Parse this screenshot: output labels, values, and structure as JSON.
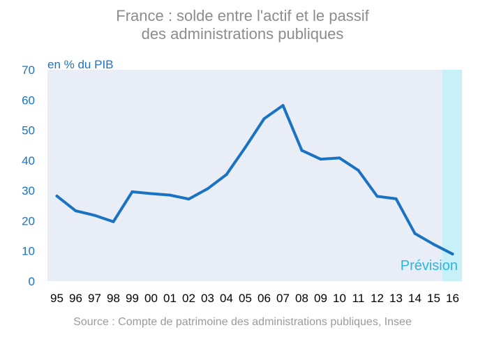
{
  "title": {
    "line1": "France : solde entre l'actif et le passif",
    "line2": "des administrations publiques"
  },
  "source": "Source : Compte de patrimoine des administrations publiques, Insee",
  "colors": {
    "line": "#1a73c2",
    "plot_bg": "#e9edf6",
    "forecast_bg": "#c8f0f8",
    "axis_text": "#1a73c2",
    "forecast_text": "#29b6e0",
    "x_text": "#000000"
  },
  "chart_data": {
    "type": "line",
    "ylabel": "en % du PIB",
    "ylim": [
      0,
      70
    ],
    "yticks": [
      0,
      10,
      20,
      30,
      40,
      50,
      60,
      70
    ],
    "grid": false,
    "categories": [
      "95",
      "96",
      "97",
      "98",
      "99",
      "00",
      "01",
      "02",
      "03",
      "04",
      "05",
      "06",
      "07",
      "08",
      "09",
      "10",
      "11",
      "12",
      "13",
      "14",
      "15",
      "16"
    ],
    "series": [
      {
        "values": [
          28.2,
          23.3,
          21.8,
          19.7,
          29.6,
          29.0,
          28.5,
          27.2,
          30.6,
          35.3,
          44.3,
          53.8,
          58.2,
          43.3,
          40.4,
          40.8,
          36.7,
          28.1,
          27.3,
          15.8,
          12.2,
          9.0
        ]
      }
    ],
    "forecast": {
      "label": "Prévision",
      "from_category": "15",
      "to_category": "16"
    }
  }
}
